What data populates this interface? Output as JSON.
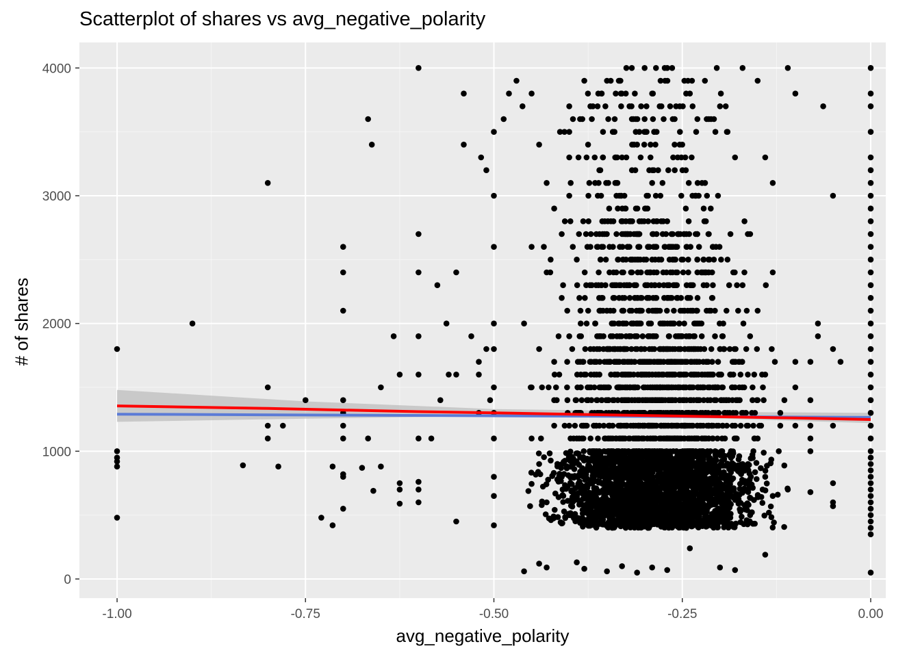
{
  "chart_data": {
    "type": "scatter",
    "title": "Scatterplot of shares vs avg_negative_polarity",
    "xlabel": "avg_negative_polarity",
    "ylabel": "# of shares",
    "xlim": [
      -1.05,
      0.02
    ],
    "ylim": [
      -150,
      4200
    ],
    "x_ticks": [
      -1.0,
      -0.75,
      -0.5,
      -0.25,
      0.0
    ],
    "x_tick_labels": [
      "-1.00",
      "-0.75",
      "-0.50",
      "-0.25",
      "0.00"
    ],
    "y_ticks": [
      0,
      1000,
      2000,
      3000,
      4000
    ],
    "y_tick_labels": [
      "0",
      "1000",
      "2000",
      "3000",
      "4000"
    ],
    "grid": true,
    "legend": "none",
    "colors": {
      "panel_background": "#EBEBEB",
      "grid_major": "#FFFFFF",
      "grid_minor": "#F5F5F5",
      "points": "#000000",
      "confidence_band": "#BEBEBE",
      "lm_line": "#5B7BD6",
      "loess_line": "#FF0000"
    },
    "points": [
      [
        -1.0,
        1800
      ],
      [
        -1.0,
        1000
      ],
      [
        -1.0,
        950
      ],
      [
        -1.0,
        920
      ],
      [
        -1.0,
        880
      ],
      [
        -1.0,
        480
      ],
      [
        -0.9,
        2000
      ],
      [
        -0.8,
        3100
      ],
      [
        -0.8,
        1500
      ],
      [
        -0.8,
        1200
      ],
      [
        -0.8,
        1100
      ],
      [
        -0.833,
        890
      ],
      [
        -0.78,
        1200
      ],
      [
        -0.786,
        880
      ],
      [
        -0.75,
        1400
      ],
      [
        -0.729,
        480
      ],
      [
        -0.714,
        880
      ],
      [
        -0.714,
        420
      ],
      [
        -0.7,
        2600
      ],
      [
        -0.7,
        2400
      ],
      [
        -0.7,
        2100
      ],
      [
        -0.7,
        1400
      ],
      [
        -0.7,
        1300
      ],
      [
        -0.7,
        1200
      ],
      [
        -0.7,
        1100
      ],
      [
        -0.7,
        820
      ],
      [
        -0.7,
        800
      ],
      [
        -0.7,
        550
      ],
      [
        -0.675,
        870
      ],
      [
        -0.667,
        3600
      ],
      [
        -0.667,
        1100
      ],
      [
        -0.662,
        3400
      ],
      [
        -0.66,
        690
      ],
      [
        -0.65,
        1500
      ],
      [
        -0.65,
        880
      ],
      [
        -0.633,
        1900
      ],
      [
        -0.625,
        1600
      ],
      [
        -0.625,
        750
      ],
      [
        -0.625,
        700
      ],
      [
        -0.625,
        590
      ],
      [
        -0.6,
        4000
      ],
      [
        -0.6,
        2700
      ],
      [
        -0.6,
        2400
      ],
      [
        -0.6,
        1900
      ],
      [
        -0.6,
        1600
      ],
      [
        -0.6,
        1100
      ],
      [
        -0.6,
        760
      ],
      [
        -0.6,
        700
      ],
      [
        -0.6,
        600
      ],
      [
        -0.583,
        1100
      ],
      [
        -0.575,
        2300
      ],
      [
        -0.571,
        1400
      ],
      [
        -0.563,
        2000
      ],
      [
        -0.56,
        1600
      ],
      [
        -0.55,
        2400
      ],
      [
        -0.55,
        1600
      ],
      [
        -0.55,
        450
      ],
      [
        -0.54,
        3800
      ],
      [
        -0.54,
        3400
      ],
      [
        -0.53,
        1900
      ],
      [
        -0.52,
        1700
      ],
      [
        -0.52,
        1600
      ],
      [
        -0.52,
        1300
      ],
      [
        -0.517,
        3300
      ],
      [
        -0.51,
        3200
      ],
      [
        -0.51,
        1800
      ],
      [
        -0.505,
        1400
      ],
      [
        -0.5,
        3500
      ],
      [
        -0.5,
        3000
      ],
      [
        -0.5,
        2600
      ],
      [
        -0.5,
        2000
      ],
      [
        -0.5,
        1800
      ],
      [
        -0.5,
        1500
      ],
      [
        -0.5,
        1300
      ],
      [
        -0.5,
        1100
      ],
      [
        -0.5,
        800
      ],
      [
        -0.5,
        650
      ],
      [
        -0.5,
        420
      ],
      [
        -0.487,
        3600
      ],
      [
        -0.48,
        3800
      ],
      [
        -0.47,
        3900
      ],
      [
        -0.462,
        3700
      ],
      [
        -0.45,
        3800
      ],
      [
        -0.44,
        3400
      ],
      [
        -0.43,
        3100
      ],
      [
        -0.42,
        2900
      ],
      [
        -0.41,
        2700
      ],
      [
        -0.4,
        3700
      ],
      [
        -0.4,
        3500
      ],
      [
        -0.4,
        3300
      ],
      [
        -0.4,
        3000
      ],
      [
        -0.38,
        3900
      ],
      [
        -0.375,
        3400
      ],
      [
        -0.37,
        3600
      ],
      [
        -0.36,
        3200
      ],
      [
        -0.35,
        3900
      ],
      [
        -0.34,
        3500
      ],
      [
        -0.33,
        3300
      ],
      [
        -0.325,
        3800
      ],
      [
        -0.31,
        3400
      ],
      [
        -0.3,
        4000
      ],
      [
        -0.3,
        3600
      ],
      [
        -0.29,
        3100
      ],
      [
        -0.28,
        3700
      ],
      [
        -0.27,
        4000
      ],
      [
        -0.26,
        3200
      ],
      [
        -0.25,
        3400
      ],
      [
        -0.24,
        3800
      ],
      [
        -0.23,
        3600
      ],
      [
        -0.22,
        3900
      ],
      [
        -0.2,
        3700
      ],
      [
        -0.19,
        3500
      ],
      [
        -0.18,
        3300
      ],
      [
        -0.17,
        4000
      ],
      [
        -0.15,
        3900
      ],
      [
        -0.14,
        3300
      ],
      [
        -0.13,
        3100
      ],
      [
        -0.11,
        4000
      ],
      [
        -0.1,
        3800
      ],
      [
        -0.45,
        2600
      ],
      [
        -0.43,
        2400
      ],
      [
        -0.41,
        2200
      ],
      [
        -0.39,
        2500
      ],
      [
        -0.37,
        2300
      ],
      [
        -0.35,
        2100
      ],
      [
        -0.33,
        2400
      ],
      [
        -0.31,
        2200
      ],
      [
        -0.29,
        2500
      ],
      [
        -0.27,
        2300
      ],
      [
        -0.25,
        2100
      ],
      [
        -0.23,
        2400
      ],
      [
        -0.21,
        2200
      ],
      [
        -0.19,
        2500
      ],
      [
        -0.17,
        2300
      ],
      [
        -0.15,
        2100
      ],
      [
        -0.13,
        2400
      ],
      [
        -0.46,
        2000
      ],
      [
        -0.44,
        1800
      ],
      [
        -0.42,
        1700
      ],
      [
        -0.4,
        1900
      ],
      [
        -0.38,
        1600
      ],
      [
        -0.36,
        1800
      ],
      [
        -0.34,
        1700
      ],
      [
        -0.32,
        1900
      ],
      [
        -0.3,
        1600
      ],
      [
        -0.28,
        1800
      ],
      [
        -0.26,
        1700
      ],
      [
        -0.24,
        1900
      ],
      [
        -0.22,
        1600
      ],
      [
        -0.2,
        1800
      ],
      [
        -0.18,
        1700
      ],
      [
        -0.16,
        1900
      ],
      [
        -0.14,
        1600
      ],
      [
        -0.45,
        1500
      ],
      [
        -0.42,
        1400
      ],
      [
        -0.39,
        1300
      ],
      [
        -0.36,
        1500
      ],
      [
        -0.33,
        1400
      ],
      [
        -0.3,
        1300
      ],
      [
        -0.27,
        1500
      ],
      [
        -0.24,
        1400
      ],
      [
        -0.21,
        1300
      ],
      [
        -0.18,
        1500
      ],
      [
        -0.15,
        1400
      ],
      [
        -0.12,
        1300
      ],
      [
        -0.45,
        1100
      ],
      [
        -0.42,
        1200
      ],
      [
        -0.39,
        1100
      ],
      [
        -0.36,
        1200
      ],
      [
        -0.33,
        1100
      ],
      [
        -0.3,
        1200
      ],
      [
        -0.27,
        1100
      ],
      [
        -0.24,
        1200
      ],
      [
        -0.21,
        1100
      ],
      [
        -0.18,
        1200
      ],
      [
        -0.15,
        1100
      ],
      [
        -0.12,
        1200
      ],
      [
        -0.44,
        900
      ],
      [
        -0.41,
        800
      ],
      [
        -0.38,
        700
      ],
      [
        -0.35,
        900
      ],
      [
        -0.32,
        800
      ],
      [
        -0.29,
        700
      ],
      [
        -0.26,
        900
      ],
      [
        -0.23,
        800
      ],
      [
        -0.2,
        700
      ],
      [
        -0.17,
        900
      ],
      [
        -0.14,
        800
      ],
      [
        -0.11,
        700
      ],
      [
        -0.43,
        600
      ],
      [
        -0.4,
        500
      ],
      [
        -0.37,
        650
      ],
      [
        -0.34,
        550
      ],
      [
        -0.31,
        600
      ],
      [
        -0.28,
        500
      ],
      [
        -0.25,
        650
      ],
      [
        -0.22,
        550
      ],
      [
        -0.19,
        600
      ],
      [
        -0.16,
        500
      ],
      [
        -0.13,
        650
      ],
      [
        -0.46,
        60
      ],
      [
        -0.44,
        120
      ],
      [
        -0.43,
        90
      ],
      [
        -0.39,
        130
      ],
      [
        -0.38,
        80
      ],
      [
        -0.35,
        60
      ],
      [
        -0.33,
        100
      ],
      [
        -0.31,
        50
      ],
      [
        -0.29,
        90
      ],
      [
        -0.27,
        70
      ],
      [
        -0.24,
        240
      ],
      [
        -0.2,
        90
      ],
      [
        -0.18,
        70
      ],
      [
        -0.14,
        190
      ],
      [
        -0.1,
        1700
      ],
      [
        -0.1,
        1500
      ],
      [
        -0.1,
        1200
      ],
      [
        -0.08,
        1700
      ],
      [
        -0.08,
        1400
      ],
      [
        -0.08,
        1200
      ],
      [
        -0.08,
        1100
      ],
      [
        -0.08,
        1000
      ],
      [
        -0.08,
        680
      ],
      [
        -0.07,
        2000
      ],
      [
        -0.07,
        1900
      ],
      [
        -0.063,
        3700
      ],
      [
        -0.05,
        3000
      ],
      [
        -0.05,
        1800
      ],
      [
        -0.05,
        1200
      ],
      [
        -0.05,
        750
      ],
      [
        -0.05,
        600
      ],
      [
        -0.05,
        570
      ],
      [
        -0.04,
        1700
      ],
      [
        0.0,
        4000
      ],
      [
        0.0,
        3800
      ],
      [
        0.0,
        3700
      ],
      [
        0.0,
        3500
      ],
      [
        0.0,
        3300
      ],
      [
        0.0,
        3200
      ],
      [
        0.0,
        3100
      ],
      [
        0.0,
        3000
      ],
      [
        0.0,
        2900
      ],
      [
        0.0,
        2800
      ],
      [
        0.0,
        2700
      ],
      [
        0.0,
        2600
      ],
      [
        0.0,
        2500
      ],
      [
        0.0,
        2400
      ],
      [
        0.0,
        2300
      ],
      [
        0.0,
        2200
      ],
      [
        0.0,
        2100
      ],
      [
        0.0,
        2000
      ],
      [
        0.0,
        1900
      ],
      [
        0.0,
        1800
      ],
      [
        0.0,
        1700
      ],
      [
        0.0,
        1600
      ],
      [
        0.0,
        1500
      ],
      [
        0.0,
        1400
      ],
      [
        0.0,
        1300
      ],
      [
        0.0,
        1200
      ],
      [
        0.0,
        1100
      ],
      [
        0.0,
        1000
      ],
      [
        0.0,
        950
      ],
      [
        0.0,
        900
      ],
      [
        0.0,
        850
      ],
      [
        0.0,
        800
      ],
      [
        0.0,
        750
      ],
      [
        0.0,
        700
      ],
      [
        0.0,
        650
      ],
      [
        0.0,
        600
      ],
      [
        0.0,
        550
      ],
      [
        0.0,
        500
      ],
      [
        0.0,
        450
      ],
      [
        0.0,
        400
      ],
      [
        0.0,
        350
      ],
      [
        0.0,
        50
      ]
    ],
    "dense_regions": [
      {
        "x_range": [
          -0.47,
          -0.1
        ],
        "y_range": [
          400,
          1000
        ],
        "count": 2500
      },
      {
        "x_range": [
          -0.46,
          -0.1
        ],
        "y_range": [
          1000,
          1800
        ],
        "count": 900,
        "y_step": 100
      },
      {
        "x_range": [
          -0.45,
          -0.12
        ],
        "y_range": [
          1800,
          2800
        ],
        "count": 450,
        "y_step": 100
      },
      {
        "x_range": [
          -0.45,
          -0.15
        ],
        "y_range": [
          2800,
          4000
        ],
        "count": 160,
        "y_step": 100
      }
    ],
    "fit_lines": [
      {
        "method": "lm",
        "x": [
          -1.0,
          0.0
        ],
        "y": [
          1290,
          1265
        ]
      },
      {
        "method": "loess",
        "x": [
          -1.0,
          -0.8,
          -0.6,
          -0.5,
          -0.4,
          -0.3,
          -0.2,
          -0.1,
          0.0
        ],
        "y": [
          1355,
          1335,
          1310,
          1300,
          1290,
          1280,
          1270,
          1260,
          1248
        ]
      }
    ],
    "confidence_band": {
      "x": [
        -1.0,
        -0.75,
        -0.5,
        -0.25,
        0.0
      ],
      "lower": [
        1230,
        1255,
        1275,
        1265,
        1220
      ],
      "upper": [
        1480,
        1390,
        1330,
        1310,
        1300
      ]
    }
  }
}
